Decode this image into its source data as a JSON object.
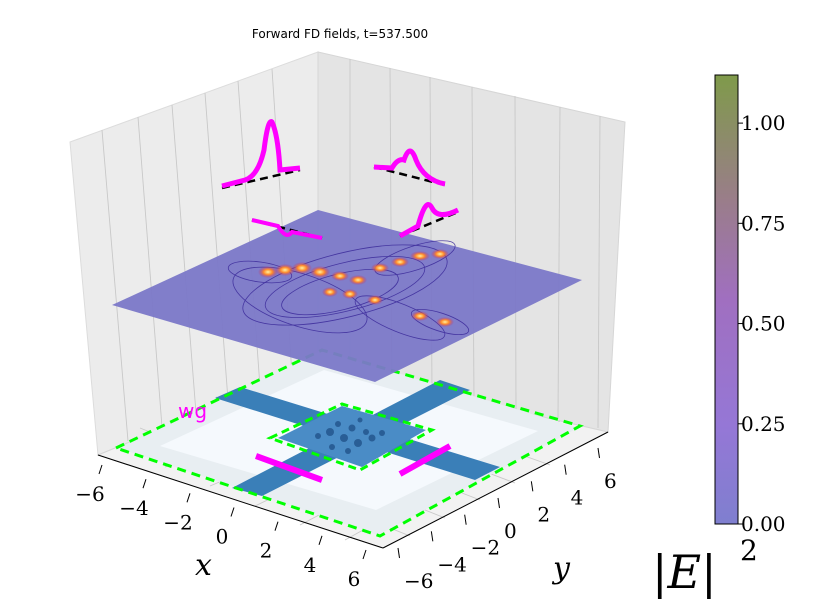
{
  "chart_data": {
    "type": "heatmap",
    "title": "Forward FD fields, t=537.500",
    "xlabel": "x",
    "ylabel": "y",
    "x_ticks": [
      "−6",
      "−4",
      "−2",
      "0",
      "2",
      "4",
      "6"
    ],
    "y_ticks": [
      "−6",
      "−4",
      "−2",
      "0",
      "2",
      "4",
      "6"
    ],
    "xlim": [
      -6.5,
      6.5
    ],
    "ylim": [
      -6.5,
      6.5
    ],
    "colorbar": {
      "label": "|E|",
      "label_power": "2",
      "ticks": [
        "0.00",
        "0.25",
        "0.50",
        "0.75",
        "1.00"
      ],
      "tick_values": [
        0.0,
        0.25,
        0.5,
        0.75,
        1.0
      ],
      "range": [
        0.0,
        1.12
      ]
    },
    "partial_label": "wg",
    "grid": true,
    "colors": {
      "plane": "#7b78c8",
      "waveguide": "#3a7fb8",
      "boundary": "#00ff00",
      "mode_profile": "#ff00ff",
      "colorbar_top": "#7f9a4a",
      "colorbar_mid": "#a06fcf",
      "colorbar_bottom": "#7f7fcf"
    }
  }
}
